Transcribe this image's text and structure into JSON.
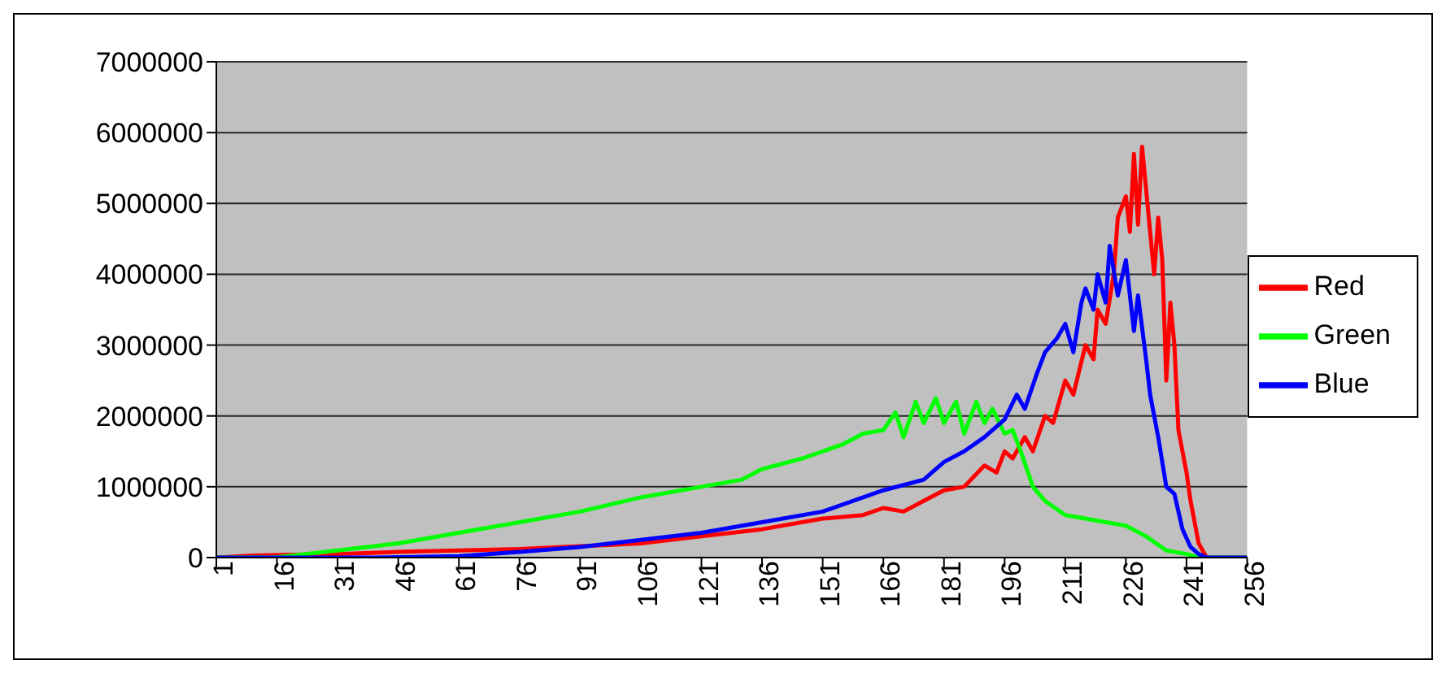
{
  "chart_data": {
    "type": "line",
    "xlim": [
      1,
      256
    ],
    "xticks": [
      1,
      16,
      31,
      46,
      61,
      76,
      91,
      106,
      121,
      136,
      151,
      166,
      181,
      196,
      211,
      226,
      241,
      256
    ],
    "ylim": [
      0,
      7000000
    ],
    "yticks": [
      0,
      1000000,
      2000000,
      3000000,
      4000000,
      5000000,
      6000000,
      7000000
    ],
    "grid": "y",
    "legend": "right",
    "marker": "none",
    "line_style": "solid",
    "series": [
      {
        "name": "Red",
        "color": "#ff0000",
        "x": [
          1,
          10,
          20,
          31,
          46,
          61,
          76,
          91,
          106,
          121,
          136,
          151,
          161,
          166,
          171,
          176,
          181,
          186,
          191,
          194,
          196,
          198,
          201,
          203,
          206,
          208,
          211,
          213,
          216,
          218,
          219,
          221,
          223,
          224,
          226,
          227,
          228,
          229,
          230,
          231,
          232,
          233,
          234,
          235,
          236,
          237,
          238,
          239,
          241,
          242,
          244,
          246,
          256
        ],
        "values": [
          0,
          30000,
          40000,
          50000,
          80000,
          100000,
          120000,
          160000,
          200000,
          300000,
          400000,
          550000,
          600000,
          700000,
          650000,
          800000,
          950000,
          1000000,
          1300000,
          1200000,
          1500000,
          1400000,
          1700000,
          1500000,
          2000000,
          1900000,
          2500000,
          2300000,
          3000000,
          2800000,
          3500000,
          3300000,
          4000000,
          4800000,
          5100000,
          4600000,
          5700000,
          4700000,
          5800000,
          5200000,
          4600000,
          4000000,
          4800000,
          4200000,
          2500000,
          3600000,
          3000000,
          1800000,
          1200000,
          800000,
          200000,
          0,
          0
        ]
      },
      {
        "name": "Green",
        "color": "#00ff00",
        "x": [
          1,
          15,
          20,
          31,
          46,
          61,
          76,
          91,
          106,
          121,
          131,
          136,
          146,
          151,
          156,
          161,
          166,
          169,
          171,
          174,
          176,
          179,
          181,
          184,
          186,
          189,
          191,
          193,
          196,
          198,
          200,
          203,
          206,
          211,
          216,
          221,
          226,
          231,
          236,
          241,
          244,
          256
        ],
        "values": [
          0,
          0,
          30000,
          100000,
          200000,
          350000,
          500000,
          650000,
          850000,
          1000000,
          1100000,
          1250000,
          1400000,
          1500000,
          1600000,
          1750000,
          1800000,
          2050000,
          1700000,
          2200000,
          1900000,
          2250000,
          1900000,
          2200000,
          1750000,
          2200000,
          1900000,
          2100000,
          1750000,
          1800000,
          1500000,
          1000000,
          800000,
          600000,
          550000,
          500000,
          450000,
          300000,
          100000,
          50000,
          0,
          0
        ]
      },
      {
        "name": "Blue",
        "color": "#0000ff",
        "x": [
          1,
          40,
          61,
          76,
          91,
          106,
          121,
          136,
          151,
          166,
          176,
          181,
          186,
          191,
          196,
          199,
          201,
          204,
          206,
          209,
          211,
          213,
          215,
          216,
          218,
          219,
          221,
          222,
          224,
          226,
          228,
          229,
          231,
          232,
          233,
          234,
          236,
          238,
          240,
          242,
          244,
          246,
          256
        ],
        "values": [
          0,
          0,
          20000,
          80000,
          150000,
          250000,
          350000,
          500000,
          650000,
          950000,
          1100000,
          1350000,
          1500000,
          1700000,
          1950000,
          2300000,
          2100000,
          2600000,
          2900000,
          3100000,
          3300000,
          2900000,
          3600000,
          3800000,
          3500000,
          4000000,
          3600000,
          4400000,
          3700000,
          4200000,
          3200000,
          3700000,
          2800000,
          2300000,
          2000000,
          1700000,
          1000000,
          900000,
          400000,
          150000,
          50000,
          0,
          0
        ]
      }
    ]
  }
}
